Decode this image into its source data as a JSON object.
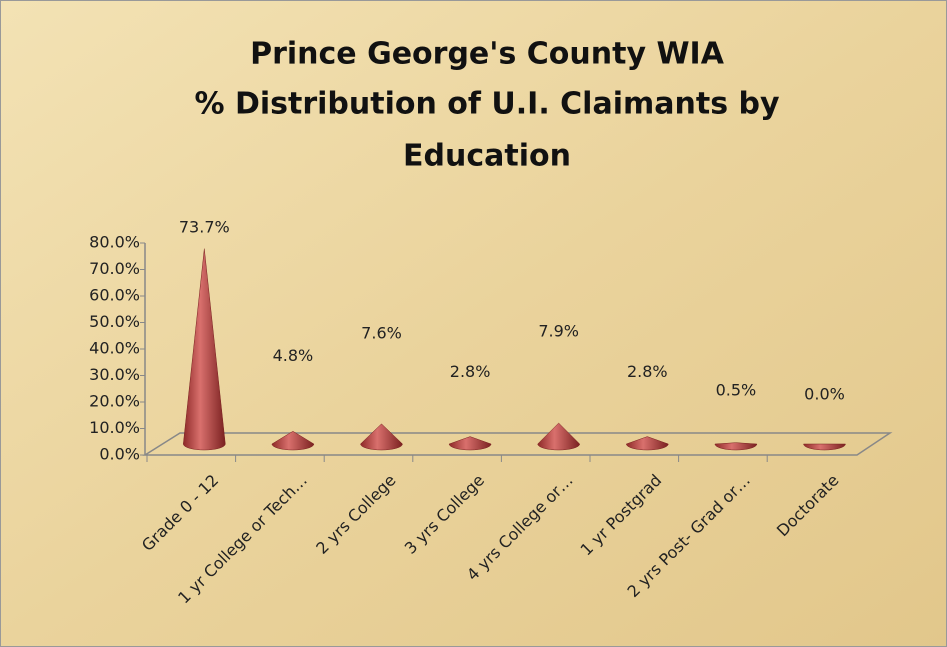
{
  "chart_data": {
    "type": "cone",
    "title": [
      "Prince George's County WIA",
      "% Distribution of U.I. Claimants by",
      "Education"
    ],
    "categories": [
      "Grade 0 - 12",
      "1 yr College or Tech…",
      "2 yrs College",
      "3 yrs College",
      "4 yrs College or…",
      "1 yr Postgrad",
      "2 yrs Post- Grad or…",
      "Doctorate"
    ],
    "values": [
      73.7,
      4.8,
      7.6,
      2.8,
      7.9,
      2.8,
      0.5,
      0.0
    ],
    "value_labels": [
      "73.7%",
      "4.8%",
      "7.6%",
      "2.8%",
      "7.9%",
      "2.8%",
      "0.5%",
      "0.0%"
    ],
    "color": "#c0504d",
    "ylim": [
      0,
      80
    ],
    "yticks": [
      {
        "value": 0,
        "label": "0.0%"
      },
      {
        "value": 10,
        "label": "10.0%"
      },
      {
        "value": 20,
        "label": "20.0%"
      },
      {
        "value": 30,
        "label": "30.0%"
      },
      {
        "value": 40,
        "label": "40.0%"
      },
      {
        "value": 50,
        "label": "50.0%"
      },
      {
        "value": 60,
        "label": "60.0%"
      },
      {
        "value": 70,
        "label": "70.0%"
      },
      {
        "value": 80,
        "label": "80.0%"
      }
    ]
  }
}
